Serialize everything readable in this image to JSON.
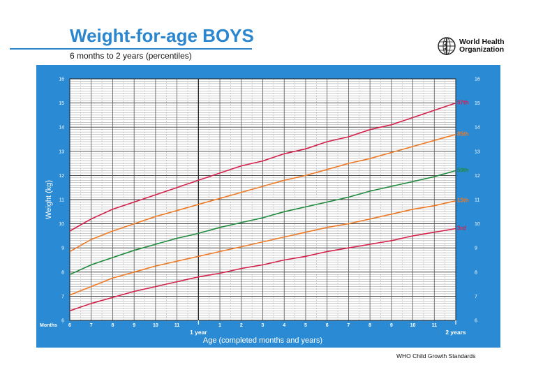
{
  "header": {
    "title": "Weight-for-age BOYS",
    "subtitle": "6 months to 2 years (percentiles)"
  },
  "logo": {
    "line1": "World Health",
    "line2": "Organization",
    "icon": "who-emblem-icon"
  },
  "footer": {
    "text": "WHO Child Growth Standards"
  },
  "colors": {
    "panel": "#2a8ad4",
    "title": "#2a86cf",
    "p97": "#d4204a",
    "p85": "#f07a25",
    "p50": "#1f8a3c",
    "p15": "#f07a25",
    "p3": "#d4204a"
  },
  "chart_data": {
    "type": "line",
    "title": "",
    "xlabel": "Age (completed months and years)",
    "ylabel": "Weight (kg)",
    "months_label": "Months",
    "xlim": [
      6,
      24
    ],
    "ylim": [
      6,
      16
    ],
    "y_ticks": [
      6,
      7,
      8,
      9,
      10,
      11,
      12,
      13,
      14,
      15,
      16
    ],
    "x_ticks": [
      {
        "x": 6,
        "label": "6"
      },
      {
        "x": 7,
        "label": "7"
      },
      {
        "x": 8,
        "label": "8"
      },
      {
        "x": 9,
        "label": "9"
      },
      {
        "x": 10,
        "label": "10"
      },
      {
        "x": 11,
        "label": "11"
      },
      {
        "x": 12,
        "label": ""
      },
      {
        "x": 13,
        "label": "1"
      },
      {
        "x": 14,
        "label": "2"
      },
      {
        "x": 15,
        "label": "3"
      },
      {
        "x": 16,
        "label": "4"
      },
      {
        "x": 17,
        "label": "5"
      },
      {
        "x": 18,
        "label": "6"
      },
      {
        "x": 19,
        "label": "7"
      },
      {
        "x": 20,
        "label": "8"
      },
      {
        "x": 21,
        "label": "9"
      },
      {
        "x": 22,
        "label": "10"
      },
      {
        "x": 23,
        "label": "11"
      },
      {
        "x": 24,
        "label": ""
      }
    ],
    "year_labels": [
      {
        "x": 12,
        "label": "1 year"
      },
      {
        "x": 24,
        "label": "2 years"
      }
    ],
    "grid": true,
    "x": [
      6,
      7,
      8,
      9,
      10,
      11,
      12,
      13,
      14,
      15,
      16,
      17,
      18,
      19,
      20,
      21,
      22,
      23,
      24
    ],
    "series": [
      {
        "name": "97th",
        "color": "#d4204a",
        "values": [
          9.7,
          10.2,
          10.6,
          10.9,
          11.2,
          11.5,
          11.8,
          12.1,
          12.4,
          12.6,
          12.9,
          13.1,
          13.4,
          13.6,
          13.9,
          14.1,
          14.4,
          14.7,
          15.0
        ]
      },
      {
        "name": "85th",
        "color": "#f07a25",
        "values": [
          8.85,
          9.35,
          9.7,
          10.0,
          10.3,
          10.55,
          10.8,
          11.05,
          11.3,
          11.55,
          11.8,
          12.0,
          12.25,
          12.5,
          12.7,
          12.95,
          13.2,
          13.45,
          13.7
        ]
      },
      {
        "name": "50th",
        "color": "#1f8a3c",
        "values": [
          7.9,
          8.3,
          8.6,
          8.9,
          9.15,
          9.4,
          9.6,
          9.85,
          10.05,
          10.25,
          10.5,
          10.7,
          10.9,
          11.1,
          11.35,
          11.55,
          11.75,
          11.95,
          12.2
        ]
      },
      {
        "name": "15th",
        "color": "#f07a25",
        "values": [
          7.05,
          7.4,
          7.75,
          8.0,
          8.25,
          8.45,
          8.65,
          8.85,
          9.05,
          9.25,
          9.45,
          9.65,
          9.85,
          10.0,
          10.2,
          10.4,
          10.6,
          10.75,
          10.95
        ]
      },
      {
        "name": "3rd",
        "color": "#d4204a",
        "values": [
          6.4,
          6.7,
          6.95,
          7.2,
          7.4,
          7.6,
          7.8,
          7.95,
          8.15,
          8.3,
          8.5,
          8.65,
          8.85,
          9.0,
          9.15,
          9.3,
          9.5,
          9.65,
          9.8
        ]
      }
    ]
  }
}
